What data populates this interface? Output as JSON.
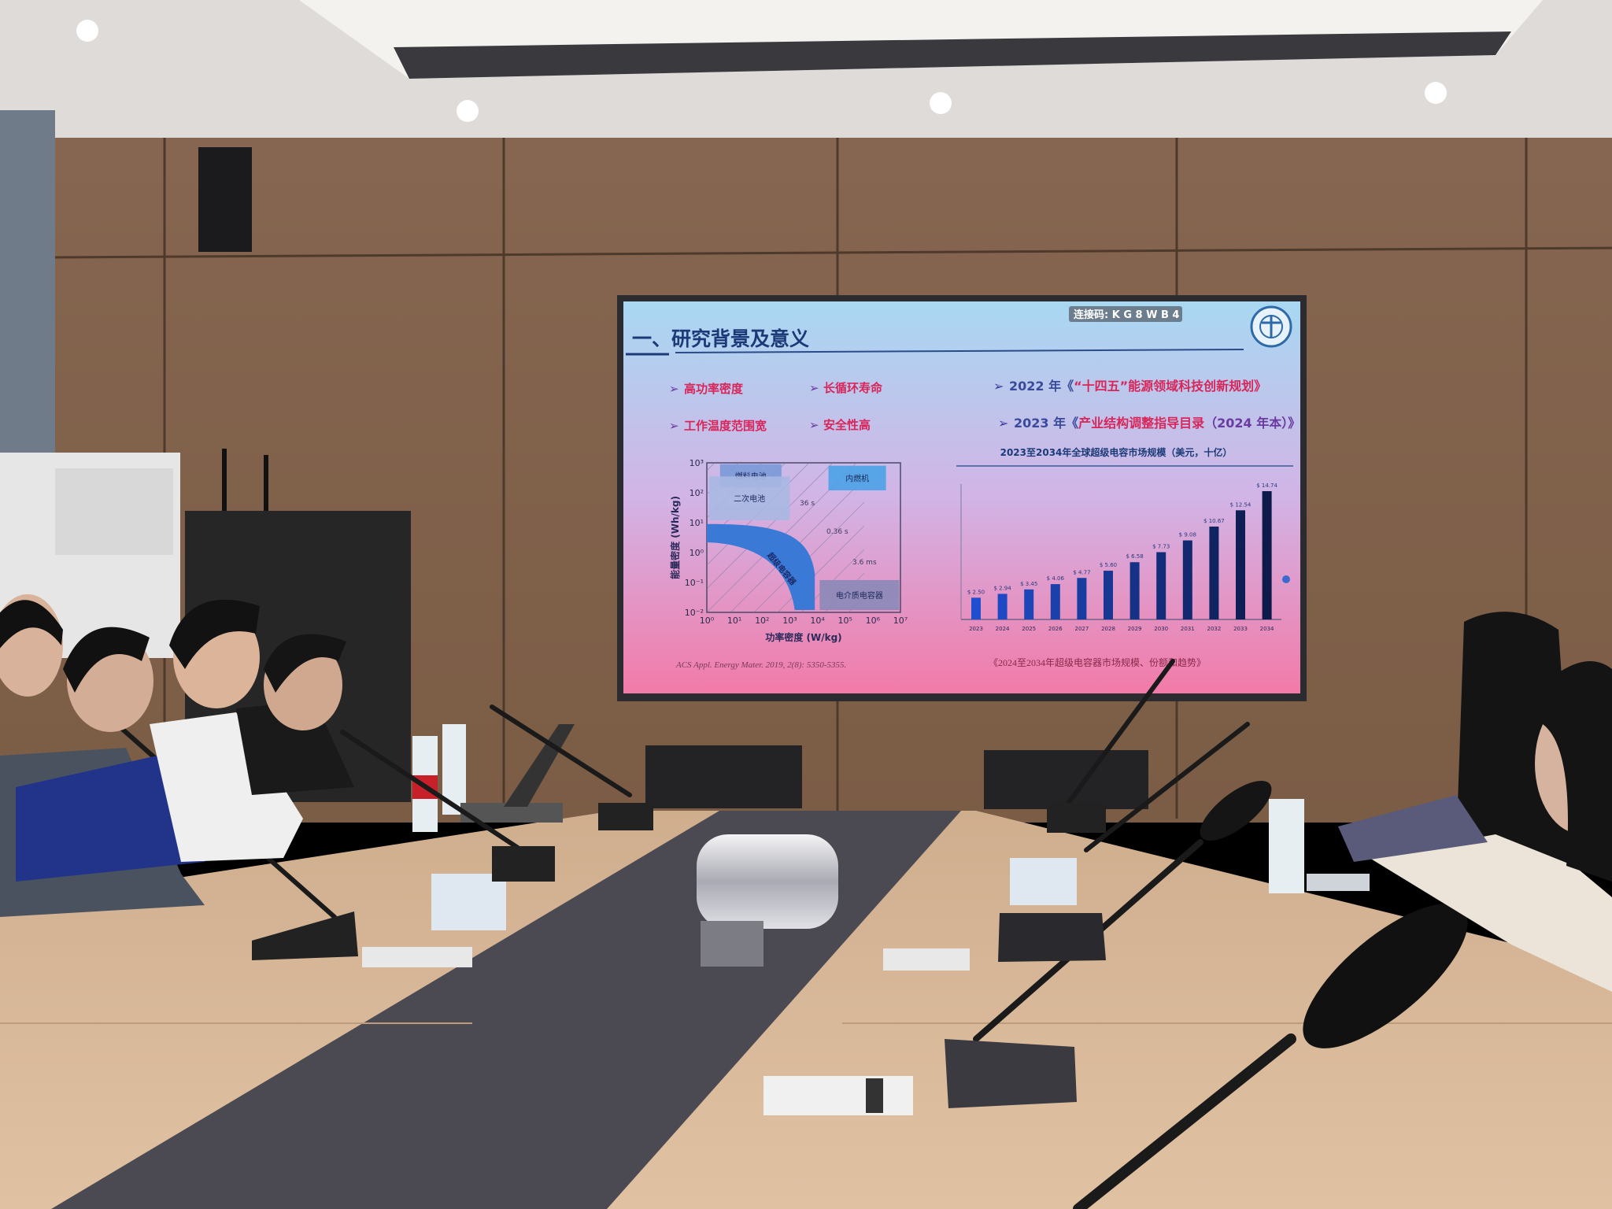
{
  "slide": {
    "badge": "连接码: K G 8 W B 4",
    "title": "一、研究背景及意义",
    "bullets_left": [
      "高功率密度",
      "长循环寿命",
      "工作温度范围宽",
      "安全性高"
    ],
    "policy_1_year": "2022 年《",
    "policy_1_quote": "“十四五”",
    "policy_1_text": "能源领域科技创新规划》",
    "policy_2_year": "2023 年《",
    "policy_2_text": "产业结构调整指导目录",
    "policy_2_tail": "（2024 年本）》",
    "citation": "ACS Appl. Energy Mater. 2019, 2(8): 5350-5355.",
    "caption": "《2024至2034年超级电容器市场规模、份额和趋势》",
    "bullet_icon": "arrowhead-bullet-icon",
    "logo": "university-seal-logo",
    "colors": {
      "top": "#a8d8f2",
      "bottom": "#f27aa8",
      "accent_text": "#d8265a",
      "bar_light": "#1f4fd0",
      "bar_dark": "#0d1a4a"
    }
  },
  "chart_data": [
    {
      "type": "bar",
      "title": "2023至2034年全球超级电容市场规模（美元，十亿）",
      "categories": [
        "2023",
        "2024",
        "2025",
        "2026",
        "2027",
        "2028",
        "2029",
        "2030",
        "2031",
        "2032",
        "2033",
        "2034"
      ],
      "values": [
        2.5,
        2.94,
        3.45,
        4.06,
        4.77,
        5.6,
        6.58,
        7.73,
        9.08,
        10.67,
        12.54,
        14.74
      ],
      "data_labels": [
        "$ 2.50",
        "$ 2.94",
        "$ 3.45",
        "$ 4.06",
        "$ 4.77",
        "$ 5.60",
        "$ 6.58",
        "$ 7.73",
        "$ 9.08",
        "$ 10.67",
        "$ 12.54",
        "$ 14.74"
      ],
      "xlabel": "",
      "ylabel": "",
      "ylim": [
        0,
        15
      ],
      "grid": false
    },
    {
      "type": "area",
      "title": "",
      "xlabel": "功率密度 (W/kg)",
      "ylabel": "能量密度 (Wh/kg)",
      "xscale": "log",
      "yscale": "log",
      "xlim": [
        1,
        10000000
      ],
      "ylim": [
        0.01,
        1000
      ],
      "x_ticks": [
        "10⁰",
        "10¹",
        "10²",
        "10³",
        "10⁴",
        "10⁵",
        "10⁶",
        "10⁷"
      ],
      "y_ticks": [
        "10⁻²",
        "10⁻¹",
        "10⁰",
        "10¹",
        "10²",
        "10³"
      ],
      "regions": [
        {
          "name": "燃料电池",
          "x": [
            3,
            500
          ],
          "y": [
            150,
            900
          ]
        },
        {
          "name": "二次电池",
          "x": [
            1.2,
            1000
          ],
          "y": [
            12,
            350
          ]
        },
        {
          "name": "内燃机",
          "x": [
            25000,
            3000000
          ],
          "y": [
            120,
            800
          ]
        },
        {
          "name": "电介质电容器",
          "x": [
            12000,
            9000000
          ],
          "y": [
            0.012,
            0.12
          ]
        },
        {
          "name": "超级电容器",
          "x": [
            1,
            8000
          ],
          "y": [
            0.012,
            9
          ]
        }
      ],
      "time_constants": [
        "36 s",
        "0.36 s",
        "3.6 ms"
      ]
    }
  ]
}
